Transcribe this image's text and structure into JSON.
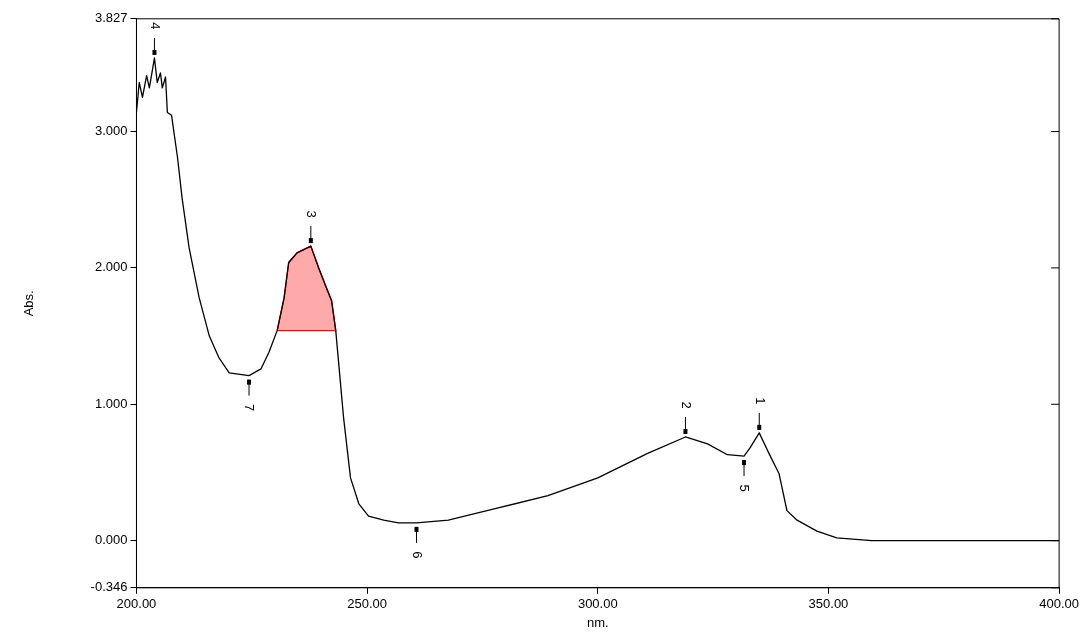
{
  "chart_data": {
    "type": "line",
    "xlabel": "nm.",
    "ylabel": "Abs.",
    "xlim": [
      200,
      400
    ],
    "ylim": [
      -0.346,
      3.827
    ],
    "xticks": [
      {
        "value": 200,
        "label": "200.00"
      },
      {
        "value": 250,
        "label": "250.00"
      },
      {
        "value": 300,
        "label": "300.00"
      },
      {
        "value": 350,
        "label": "350.00"
      },
      {
        "value": 400,
        "label": "400.00"
      }
    ],
    "yticks": [
      -0.346,
      {
        "value": 0,
        "label": "0.000"
      },
      {
        "value": 1,
        "label": "1.000"
      },
      {
        "value": 2,
        "label": "2.000"
      },
      {
        "value": 3,
        "label": "3.000"
      },
      3.827
    ],
    "grid": false,
    "legend": false,
    "marker": "none",
    "line_style": "solid",
    "series": [
      {
        "color": "#000000",
        "x": [
          200,
          200.6,
          201.3,
          202.2,
          202.8,
          203.5,
          203.9,
          204.5,
          205.2,
          205.6,
          206.3,
          206.7,
          207.6,
          208.9,
          209.9,
          211.4,
          213.6,
          215.8,
          217.9,
          220.1,
          224.4,
          227,
          228.7,
          230.5,
          232,
          233,
          234.8,
          237.8,
          239.5,
          241,
          242.3,
          243.2,
          244.9,
          246.4,
          248.2,
          250.3,
          253.6,
          256.8,
          260.7,
          267.6,
          278.4,
          289.2,
          300,
          310.8,
          319,
          323.8,
          328.1,
          331.7,
          333,
          335,
          337.1,
          339.3,
          341,
          343.2,
          347.5,
          351.8,
          359.4,
          400
        ],
        "values": [
          3.14,
          3.36,
          3.25,
          3.41,
          3.32,
          3.46,
          3.54,
          3.36,
          3.43,
          3.32,
          3.4,
          3.14,
          3.12,
          2.81,
          2.51,
          2.15,
          1.78,
          1.5,
          1.34,
          1.23,
          1.21,
          1.26,
          1.38,
          1.54,
          1.78,
          2.04,
          2.11,
          2.16,
          2.0,
          1.87,
          1.76,
          1.54,
          0.9,
          0.46,
          0.27,
          0.18,
          0.15,
          0.13,
          0.13,
          0.15,
          0.24,
          0.33,
          0.46,
          0.64,
          0.76,
          0.71,
          0.63,
          0.62,
          0.68,
          0.79,
          0.64,
          0.49,
          0.22,
          0.15,
          0.07,
          0.02,
          0.0,
          0.0
        ]
      },
      {
        "type": "area",
        "color": "#ff0000",
        "x": [
          230.5,
          232,
          233,
          234.8,
          237.8,
          239.5,
          241,
          242.3,
          243.2
        ],
        "values": [
          1.54,
          1.78,
          2.04,
          2.11,
          2.16,
          2.0,
          1.87,
          1.76,
          1.54
        ]
      }
    ],
    "annotations": [
      {
        "text": "1",
        "x": 335,
        "y": 0.79
      },
      {
        "text": "2",
        "x": 319,
        "y": 0.76
      },
      {
        "text": "3",
        "x": 237.8,
        "y": 2.16
      },
      {
        "text": "4",
        "x": 203.9,
        "y": 3.54
      },
      {
        "text": "5",
        "x": 331.7,
        "y": 0.62
      },
      {
        "text": "6",
        "x": 260.7,
        "y": 0.13
      },
      {
        "text": "7",
        "x": 224.4,
        "y": 1.21
      }
    ]
  }
}
